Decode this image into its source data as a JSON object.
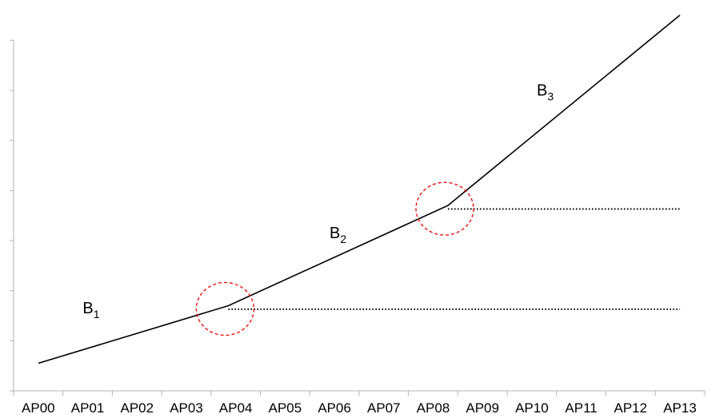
{
  "chart_data": {
    "type": "line",
    "title": "",
    "xlabel": "",
    "ylabel": "",
    "categories": [
      "AP00",
      "AP01",
      "AP02",
      "AP03",
      "AP04",
      "AP05",
      "AP06",
      "AP07",
      "AP08",
      "AP09",
      "AP10",
      "AP11",
      "AP12",
      "AP13"
    ],
    "ylim": [
      0,
      7.5
    ],
    "y_ticks": [
      0,
      1,
      2,
      3,
      4,
      5,
      6,
      7
    ],
    "grid": false,
    "series": [
      {
        "name": "",
        "color": "#000000",
        "style": "solid",
        "points": [
          {
            "x": 0,
            "y": 0.55
          },
          {
            "x": 3.85,
            "y": 1.7
          },
          {
            "x": 8.3,
            "y": 3.7
          },
          {
            "x": 13,
            "y": 7.5
          }
        ]
      },
      {
        "name": "",
        "color": "#000000",
        "style": "dotted",
        "points": [
          {
            "x": 3.85,
            "y": 1.63
          },
          {
            "x": 13,
            "y": 1.63
          }
        ]
      },
      {
        "name": "",
        "color": "#000000",
        "style": "dotted",
        "points": [
          {
            "x": 8.3,
            "y": 3.63
          },
          {
            "x": 13,
            "y": 3.63
          }
        ]
      }
    ],
    "annotations": [
      {
        "main": "B",
        "sub": "1",
        "x": 0.9,
        "y": 1.55
      },
      {
        "main": "B",
        "sub": "2",
        "x": 5.9,
        "y": 3.05
      },
      {
        "main": "B",
        "sub": "3",
        "x": 10.1,
        "y": 5.9
      }
    ],
    "breakpoint_markers": [
      {
        "x": 3.85,
        "y": 1.7,
        "color": "#ee1111"
      },
      {
        "x": 8.3,
        "y": 3.7,
        "color": "#ee1111"
      }
    ]
  }
}
